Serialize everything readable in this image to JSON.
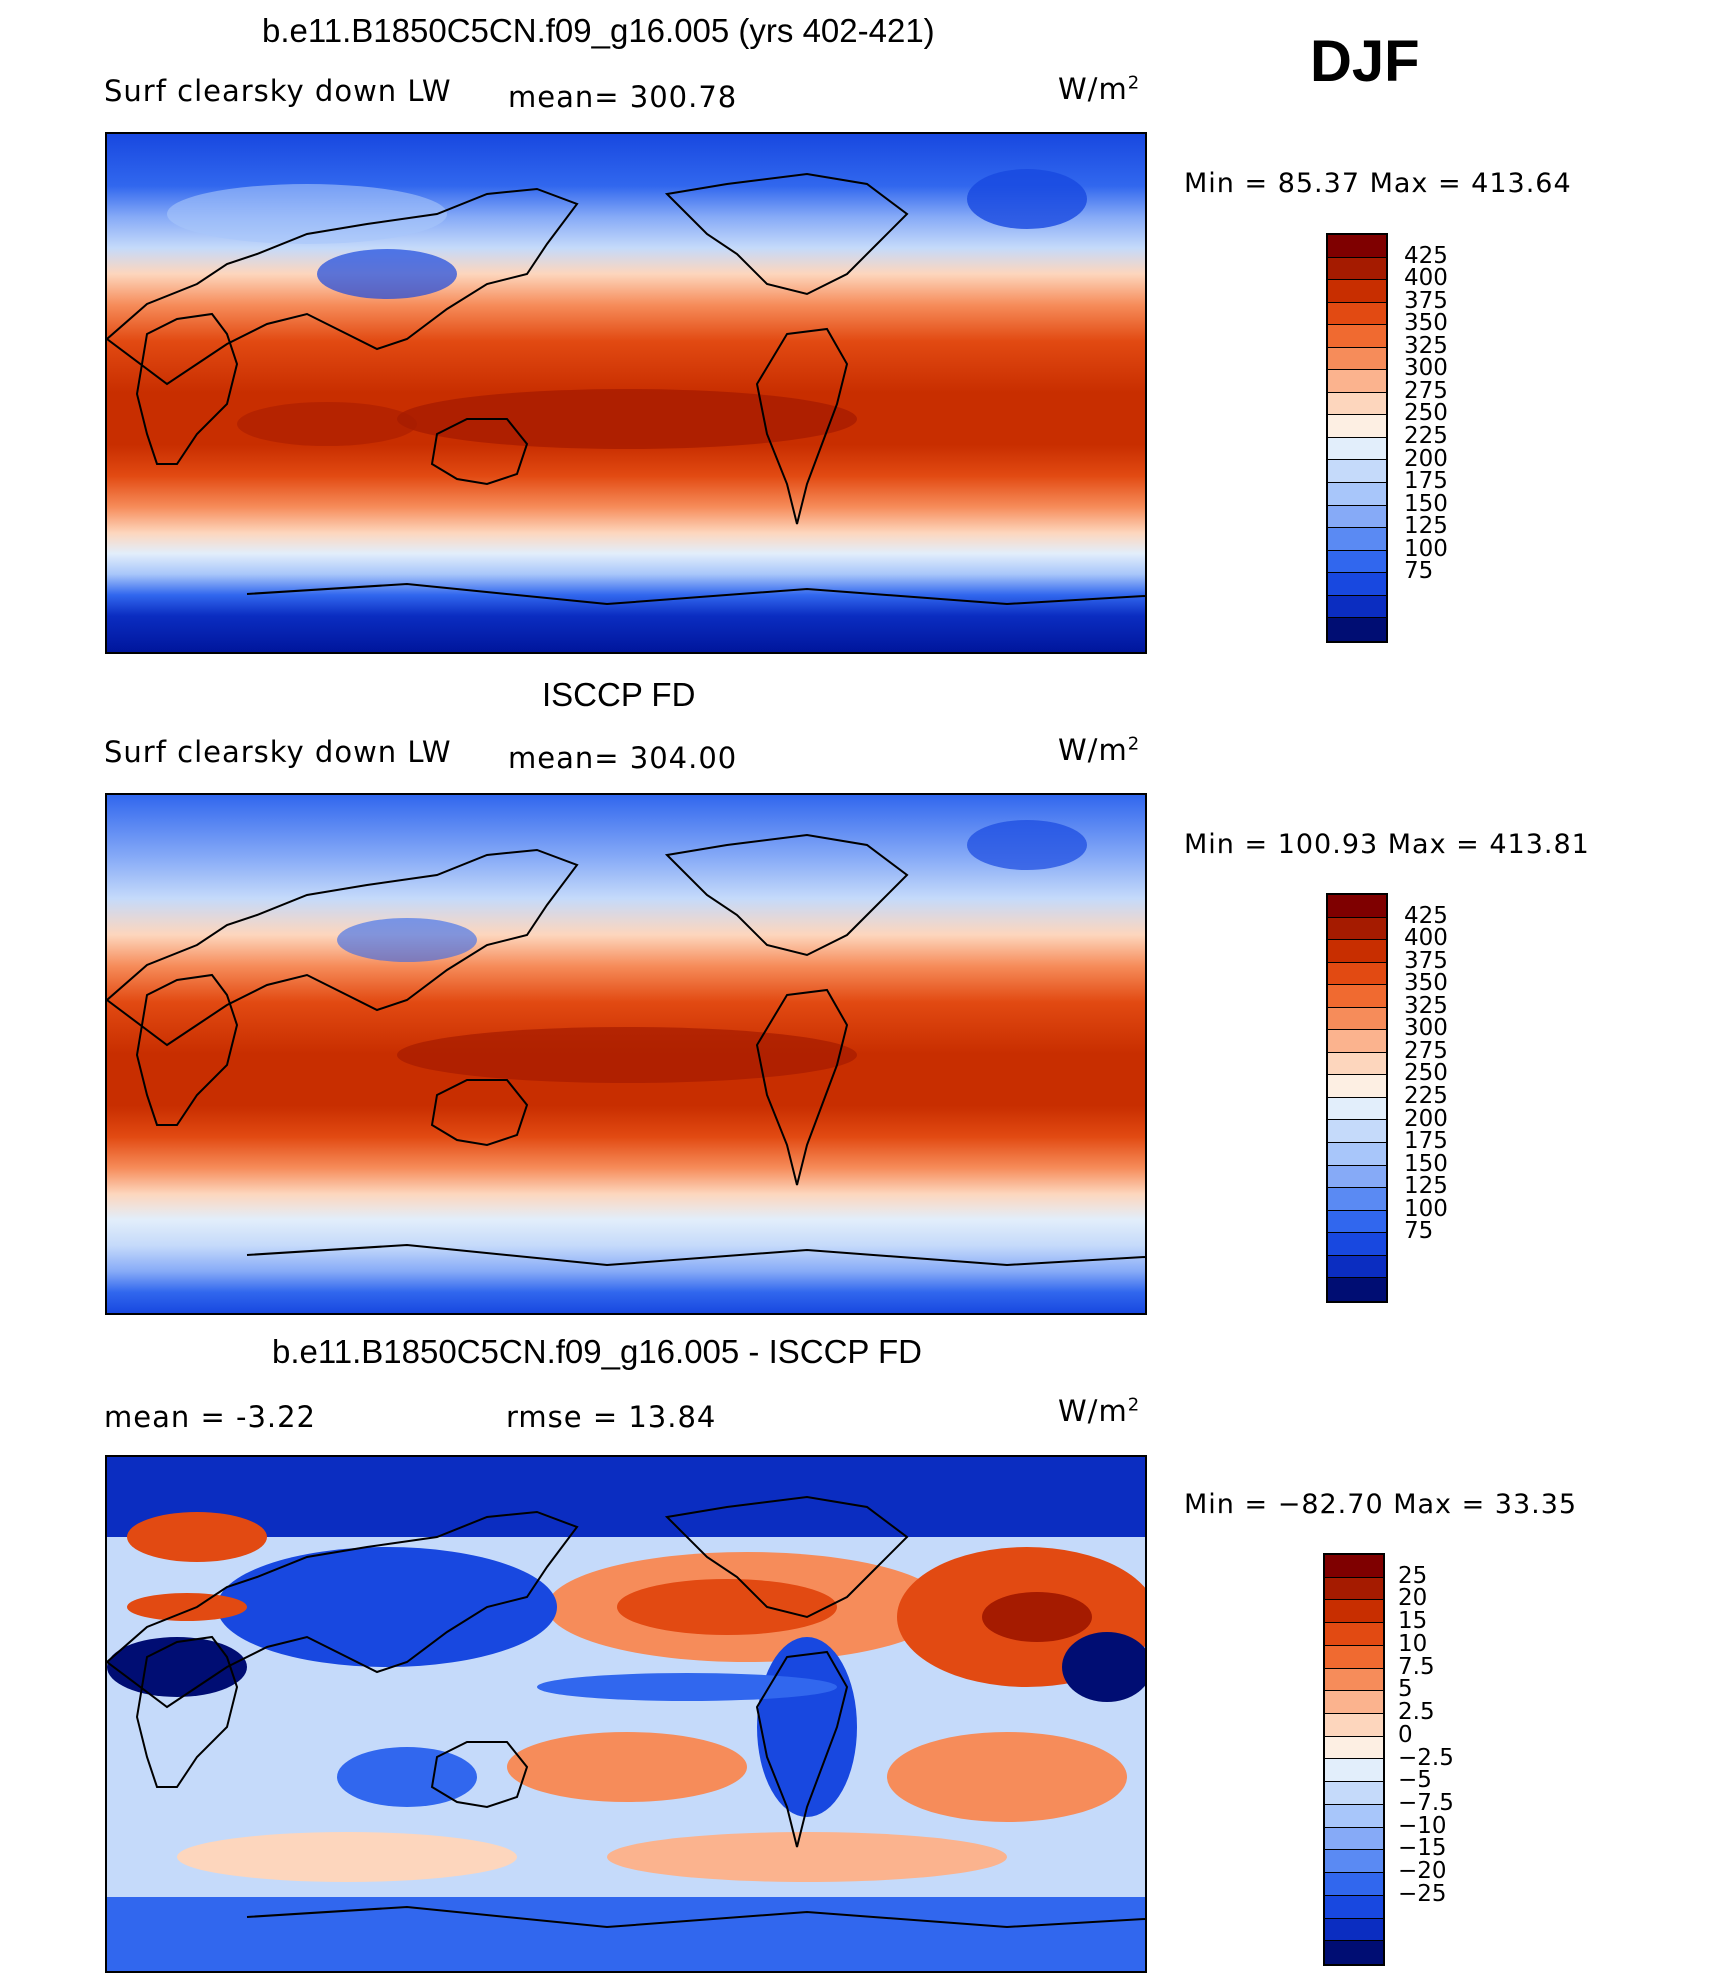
{
  "season": "DJF",
  "colors": {
    "warm": [
      "#7f0000",
      "#a51b00",
      "#c82e00",
      "#e24a12",
      "#f06a30",
      "#f68c5a",
      "#fbb38e",
      "#fdd6bd",
      "#fdefe3"
    ],
    "cool": [
      "#e2eefb",
      "#c5dafa",
      "#a8c6fa",
      "#86aaf7",
      "#5a8af3",
      "#3167ee",
      "#1848e0",
      "#0b2dc1",
      "#00169c",
      "#000d73"
    ]
  },
  "chart_data": [
    {
      "type": "heatmap",
      "title": "b.e11.B1850C5CN.f09_g16.005 (yrs 402-421)",
      "left_label": "Surf clearsky down LW",
      "center_label": "mean= 300.78",
      "units": "W/m",
      "units_sup": "2",
      "stats": "Min =   85.37 Max = 413.64",
      "mean": 300.78,
      "min": 85.37,
      "max": 413.64,
      "colorbar_labels": [
        "425",
        "400",
        "375",
        "350",
        "325",
        "300",
        "275",
        "250",
        "225",
        "200",
        "175",
        "150",
        "125",
        "100",
        "75"
      ],
      "swatch_colors": [
        "#7f0000",
        "#a51b00",
        "#c82e00",
        "#e24a12",
        "#f06a30",
        "#f68c5a",
        "#fbb38e",
        "#fdd6bd",
        "#fdefe3",
        "#e2eefb",
        "#c5dafa",
        "#a8c6fa",
        "#86aaf7",
        "#5a8af3",
        "#3167ee",
        "#1848e0",
        "#0b2dc1",
        "#000d73"
      ]
    },
    {
      "type": "heatmap",
      "title": "ISCCP FD",
      "left_label": "Surf clearsky down LW",
      "center_label": "mean= 304.00",
      "units": "W/m",
      "units_sup": "2",
      "stats": "Min = 100.93 Max = 413.81",
      "mean": 304.0,
      "min": 100.93,
      "max": 413.81,
      "colorbar_labels": [
        "425",
        "400",
        "375",
        "350",
        "325",
        "300",
        "275",
        "250",
        "225",
        "200",
        "175",
        "150",
        "125",
        "100",
        "75"
      ],
      "swatch_colors": [
        "#7f0000",
        "#a51b00",
        "#c82e00",
        "#e24a12",
        "#f06a30",
        "#f68c5a",
        "#fbb38e",
        "#fdd6bd",
        "#fdefe3",
        "#e2eefb",
        "#c5dafa",
        "#a8c6fa",
        "#86aaf7",
        "#5a8af3",
        "#3167ee",
        "#1848e0",
        "#0b2dc1",
        "#000d73"
      ]
    },
    {
      "type": "heatmap",
      "title": "b.e11.B1850C5CN.f09_g16.005 - ISCCP FD",
      "left_label": "mean =    -3.22",
      "center_label": "rmse =    13.84",
      "units": "W/m",
      "units_sup": "2",
      "stats": "Min = −82.70 Max =   33.35",
      "mean": -3.22,
      "rmse": 13.84,
      "min": -82.7,
      "max": 33.35,
      "colorbar_labels": [
        "25",
        "20",
        "15",
        "10",
        "7.5",
        "5",
        "2.5",
        "0",
        "−2.5",
        "−5",
        "−7.5",
        "−10",
        "−15",
        "−20",
        "−25"
      ],
      "swatch_colors": [
        "#7f0000",
        "#a51b00",
        "#c82e00",
        "#e24a12",
        "#f06a30",
        "#f68c5a",
        "#fbb38e",
        "#fdd6bd",
        "#fdefe3",
        "#e2eefb",
        "#c5dafa",
        "#a8c6fa",
        "#86aaf7",
        "#5a8af3",
        "#3167ee",
        "#1848e0",
        "#0b2dc1",
        "#000d73"
      ]
    }
  ]
}
